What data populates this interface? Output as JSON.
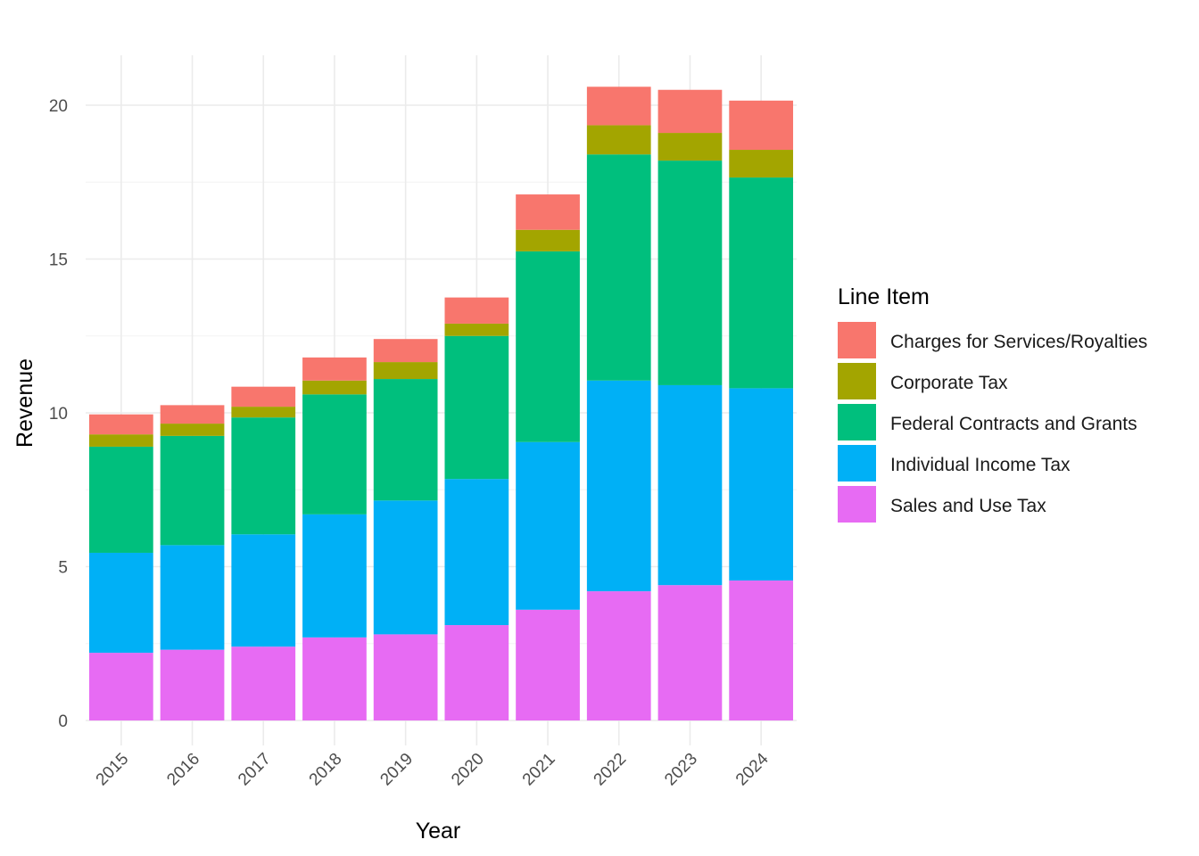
{
  "chart_data": {
    "type": "bar",
    "stacked": true,
    "title": "",
    "xlabel": "Year",
    "ylabel": "Revenue",
    "categories": [
      "2015",
      "2016",
      "2017",
      "2018",
      "2019",
      "2020",
      "2021",
      "2022",
      "2023",
      "2024"
    ],
    "ylim": [
      0,
      21.5
    ],
    "yticks": [
      0,
      5,
      10,
      15,
      20
    ],
    "grid": true,
    "legend": {
      "title": "Line Item",
      "position": "right"
    },
    "series": [
      {
        "name": "Sales and Use Tax",
        "color": "#E76BF3",
        "values": [
          2.2,
          2.3,
          2.4,
          2.7,
          2.8,
          3.1,
          3.6,
          4.2,
          4.4,
          4.55
        ]
      },
      {
        "name": "Individual Income Tax",
        "color": "#00B0F6",
        "values": [
          3.25,
          3.4,
          3.65,
          4.0,
          4.35,
          4.75,
          5.45,
          6.85,
          6.5,
          6.25
        ]
      },
      {
        "name": "Federal Contracts and Grants",
        "color": "#00BF7D",
        "values": [
          3.45,
          3.55,
          3.8,
          3.9,
          3.95,
          4.65,
          6.2,
          7.35,
          7.3,
          6.85
        ]
      },
      {
        "name": "Corporate Tax",
        "color": "#A3A500",
        "values": [
          0.4,
          0.4,
          0.35,
          0.45,
          0.55,
          0.4,
          0.7,
          0.95,
          0.9,
          0.9
        ]
      },
      {
        "name": "Charges for Services/Royalties",
        "color": "#F8766D",
        "values": [
          0.65,
          0.6,
          0.65,
          0.75,
          0.75,
          0.85,
          1.15,
          1.25,
          1.4,
          1.6
        ]
      }
    ],
    "legend_order": [
      "Charges for Services/Royalties",
      "Corporate Tax",
      "Federal Contracts and Grants",
      "Individual Income Tax",
      "Sales and Use Tax"
    ]
  }
}
